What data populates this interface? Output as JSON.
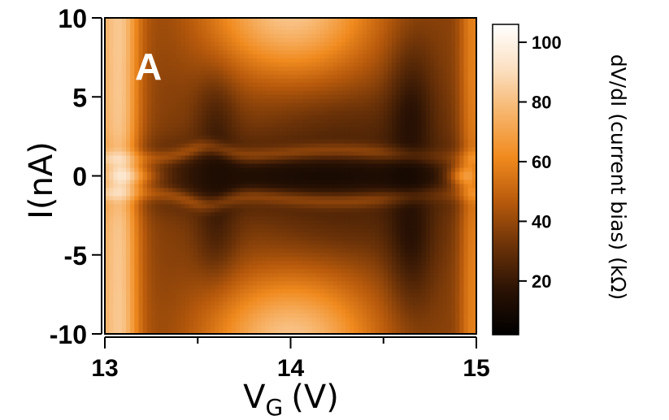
{
  "chart_data": {
    "type": "heatmap",
    "panel_label": "A",
    "xlabel": {
      "main": "V",
      "sub": "G",
      "unit": "(V)"
    },
    "ylabel": "I(nA)",
    "xlim": [
      13,
      15
    ],
    "ylim": [
      -10,
      10
    ],
    "x_ticks": [
      13,
      14,
      15
    ],
    "x_minor_ticks": [
      13.5,
      14.5
    ],
    "y_ticks": [
      -10,
      -5,
      0,
      5,
      10
    ],
    "colorbar": {
      "label": "dV/dI (current bias) (kΩ)",
      "range": [
        2,
        106
      ],
      "ticks": [
        20,
        40,
        60,
        80,
        100
      ],
      "colormap": [
        "#000000",
        "#2a1204",
        "#6b3208",
        "#b85a0c",
        "#f08a1e",
        "#f7b46a",
        "#fbe0c2",
        "#ffffff"
      ]
    },
    "z_units": "kΩ"
  }
}
